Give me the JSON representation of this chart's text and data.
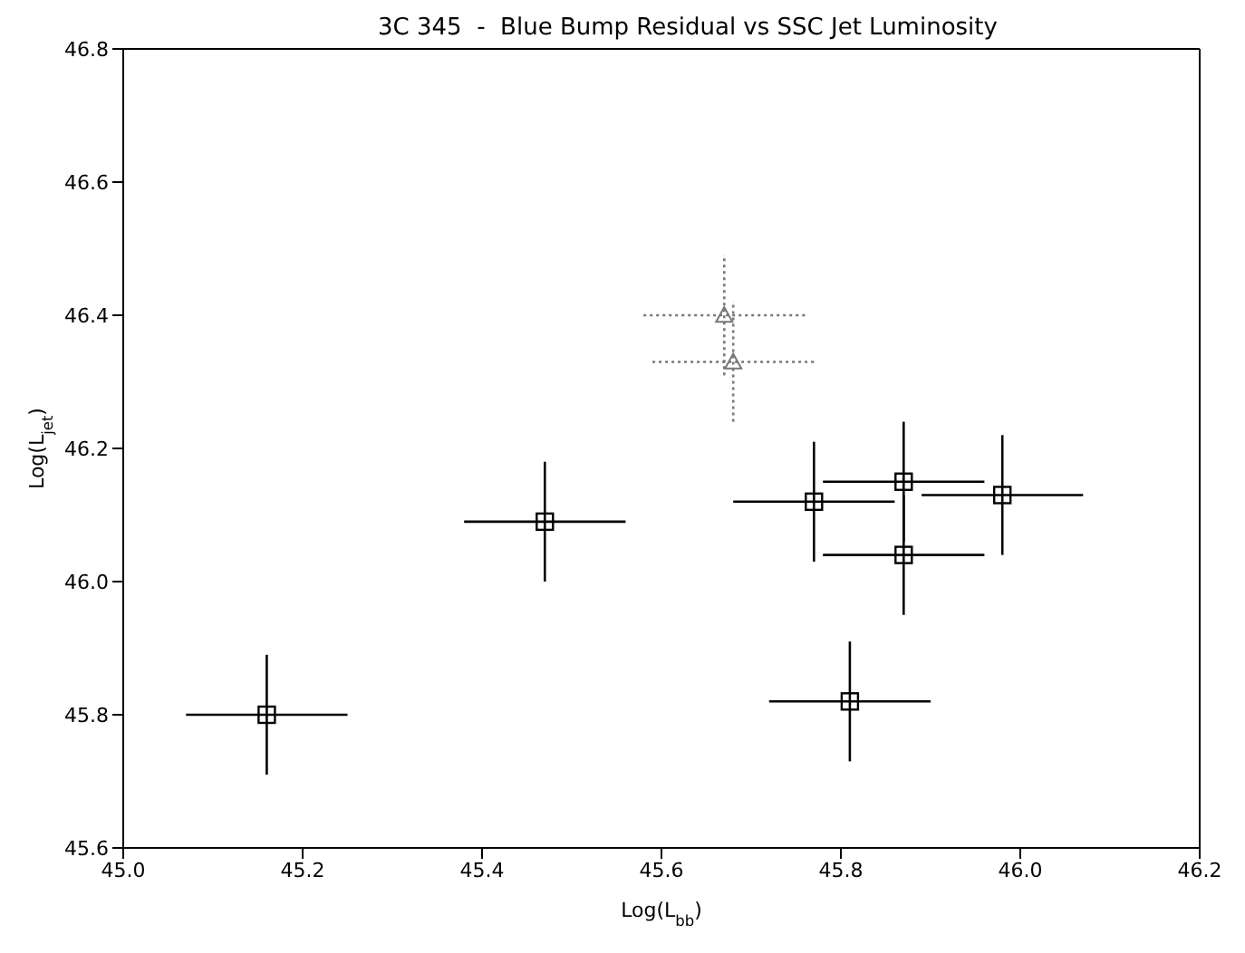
{
  "chart_data": {
    "type": "scatter",
    "title": "3C 345  -  Blue Bump Residual vs SSC Jet Luminosity",
    "xlabel": "Log(L$_{bb}$)",
    "ylabel": "Log(L$_{jet}$)",
    "xlim": [
      45.0,
      46.2
    ],
    "xticks": [
      {
        "value": 45.0,
        "label": "45.0"
      },
      {
        "value": 45.2,
        "label": "45.2"
      },
      {
        "value": 45.4,
        "label": "45.4"
      },
      {
        "value": 45.6,
        "label": "45.6"
      },
      {
        "value": 45.8,
        "label": "45.8"
      },
      {
        "value": 46.0,
        "label": "46.0"
      },
      {
        "value": 46.2,
        "label": "46.2"
      }
    ],
    "ylim": [
      45.6,
      46.8
    ],
    "yticks": [
      {
        "value": 45.6,
        "label": "45.6"
      },
      {
        "value": 45.8,
        "label": "45.8"
      },
      {
        "value": 46.0,
        "label": "46.0"
      },
      {
        "value": 46.2,
        "label": "46.2"
      },
      {
        "value": 46.4,
        "label": "46.4"
      },
      {
        "value": 46.6,
        "label": "46.6"
      },
      {
        "value": 46.8,
        "label": "46.8"
      }
    ],
    "series": [
      {
        "color": "#000000",
        "marker": "square",
        "line_style": "solid",
        "x": [
          45.16,
          45.47,
          45.77,
          45.87,
          45.87,
          45.98,
          45.81
        ],
        "values": [
          45.8,
          46.09,
          46.12,
          46.15,
          46.04,
          46.13,
          45.82
        ],
        "errors": [
          0.09,
          0.09,
          0.09,
          0.09,
          0.09,
          0.09,
          0.09
        ],
        "xerrors": [
          0.09,
          0.09,
          0.09,
          0.09,
          0.09,
          0.09,
          0.09
        ]
      },
      {
        "color": "#777777",
        "marker": "triangle",
        "line_style": "dotted",
        "x": [
          45.67,
          45.68
        ],
        "values": [
          46.4,
          46.33
        ],
        "errors": [
          0.09,
          0.09
        ],
        "xerrors": [
          0.09,
          0.09
        ]
      }
    ]
  }
}
